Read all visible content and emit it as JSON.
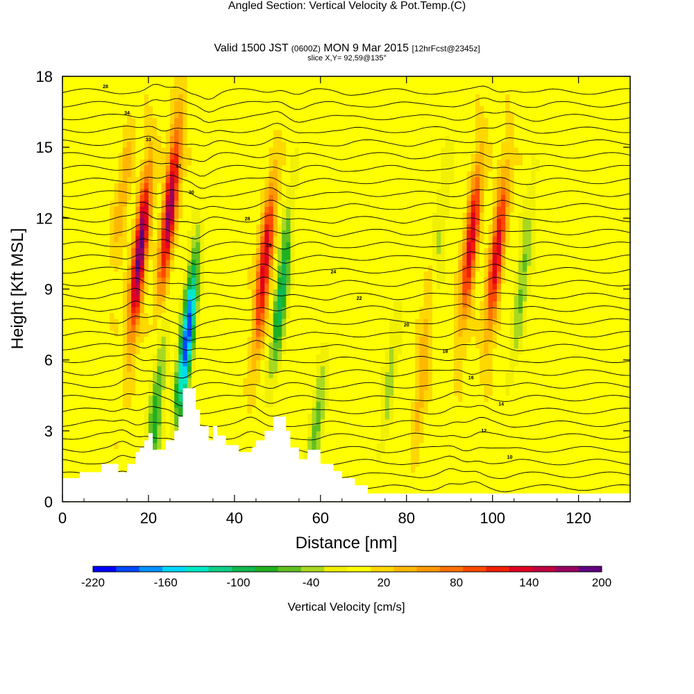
{
  "header": {
    "title": "Angled Section: Vertical Velocity & Pot.Temp.",
    "title_mark": "(C)",
    "valid_a": "Valid 1500 JST",
    "valid_b": "(0600Z)",
    "valid_c": "MON 9 Mar 2015",
    "valid_d": "[12hrFcst@2345z]",
    "slice": "slice X,Y= 92,59@135°"
  },
  "chart_data": {
    "type": "heatmap",
    "xlabel": "Distance [nm]",
    "ylabel": "Height [Kft MSL]",
    "xlim": [
      0,
      132
    ],
    "ylim": [
      0,
      18
    ],
    "x_ticks": [
      "0",
      "20",
      "40",
      "60",
      "80",
      "100",
      "120"
    ],
    "y_ticks": [
      "0",
      "3",
      "6",
      "9",
      "12",
      "15",
      "18"
    ],
    "colorbar": {
      "label": "Vertical Velocity [cm/s]",
      "tick_labels": [
        "-220",
        "-160",
        "-100",
        "-40",
        "20",
        "80",
        "140",
        "200"
      ],
      "levels": [
        -220,
        -200,
        -180,
        -160,
        -140,
        -120,
        -100,
        -80,
        -60,
        -40,
        -20,
        0,
        20,
        40,
        60,
        80,
        100,
        120,
        140,
        160,
        180,
        200
      ],
      "colors": [
        "#0000ff",
        "#0048ff",
        "#0090ff",
        "#00d8ff",
        "#00e8c8",
        "#10d088",
        "#10b850",
        "#20b020",
        "#60c020",
        "#a8d820",
        "#f0f000",
        "#ffff00",
        "#ffd800",
        "#ffb800",
        "#ff9800",
        "#ff7000",
        "#ff4800",
        "#f02000",
        "#e00020",
        "#c00040",
        "#980060",
        "#600080"
      ]
    },
    "background_velocity": 12,
    "updrafts": [
      {
        "x": 18,
        "h": 10.5,
        "amp": 200
      },
      {
        "x": 25,
        "h": 12.5,
        "amp": 180
      },
      {
        "x": 47,
        "h": 10.0,
        "amp": 150
      },
      {
        "x": 95,
        "h": 11.0,
        "amp": 140
      },
      {
        "x": 101,
        "h": 10.5,
        "amp": 140
      },
      {
        "x": 84,
        "h": 6.0,
        "amp": 50
      },
      {
        "x": 14,
        "h": 13.0,
        "amp": 40
      }
    ],
    "downdrafts": [
      {
        "x": 29,
        "h": 7.0,
        "amp": -210
      },
      {
        "x": 51,
        "h": 9.0,
        "amp": -110
      },
      {
        "x": 21.5,
        "h": 3.5,
        "amp": -90
      },
      {
        "x": 59,
        "h": 3.0,
        "amp": -60
      },
      {
        "x": 107,
        "h": 9.5,
        "amp": -60
      },
      {
        "x": 76,
        "h": 5.0,
        "amp": -40
      },
      {
        "x": 88,
        "h": 11.5,
        "amp": -40
      }
    ],
    "terrain": [
      [
        0,
        1.0
      ],
      [
        4,
        1.0
      ],
      [
        4,
        1.25
      ],
      [
        9,
        1.25
      ],
      [
        9,
        1.6
      ],
      [
        13,
        1.6
      ],
      [
        13,
        1.25
      ],
      [
        15,
        1.25
      ],
      [
        15,
        1.6
      ],
      [
        17,
        1.6
      ],
      [
        17,
        2.1
      ],
      [
        18,
        2.1
      ],
      [
        18,
        2.3
      ],
      [
        19,
        2.3
      ],
      [
        19,
        2.6
      ],
      [
        20,
        2.6
      ],
      [
        20,
        2.9
      ],
      [
        21,
        2.9
      ],
      [
        21,
        2.2
      ],
      [
        24,
        2.2
      ],
      [
        24,
        2.6
      ],
      [
        26,
        2.6
      ],
      [
        26,
        3.0
      ],
      [
        27,
        3.0
      ],
      [
        27,
        3.6
      ],
      [
        28,
        3.6
      ],
      [
        28,
        4.8
      ],
      [
        31,
        4.8
      ],
      [
        31,
        3.9
      ],
      [
        32,
        3.9
      ],
      [
        32,
        3.2
      ],
      [
        34,
        3.2
      ],
      [
        34,
        2.6
      ],
      [
        35,
        2.6
      ],
      [
        35,
        3.2
      ],
      [
        36,
        3.2
      ],
      [
        36,
        2.8
      ],
      [
        38,
        2.8
      ],
      [
        38,
        2.4
      ],
      [
        41,
        2.4
      ],
      [
        41,
        2.1
      ],
      [
        44,
        2.1
      ],
      [
        44,
        2.3
      ],
      [
        45,
        2.3
      ],
      [
        45,
        2.6
      ],
      [
        47,
        2.6
      ],
      [
        47,
        3.0
      ],
      [
        49,
        3.0
      ],
      [
        49,
        3.6
      ],
      [
        52,
        3.6
      ],
      [
        52,
        3.0
      ],
      [
        53,
        3.0
      ],
      [
        53,
        2.3
      ],
      [
        55,
        2.3
      ],
      [
        55,
        1.8
      ],
      [
        57,
        1.8
      ],
      [
        57,
        2.2
      ],
      [
        60,
        2.2
      ],
      [
        60,
        1.6
      ],
      [
        63,
        1.6
      ],
      [
        63,
        1.3
      ],
      [
        65,
        1.3
      ],
      [
        65,
        1.0
      ],
      [
        68,
        1.0
      ],
      [
        68,
        0.7
      ],
      [
        71,
        0.7
      ],
      [
        71,
        0.35
      ],
      [
        132,
        0.35
      ]
    ],
    "theta_labels": [
      "28",
      "34",
      "33",
      "32",
      "30",
      "28",
      "26",
      "24",
      "22",
      "20",
      "18",
      "16",
      "14",
      "12",
      "10"
    ]
  }
}
